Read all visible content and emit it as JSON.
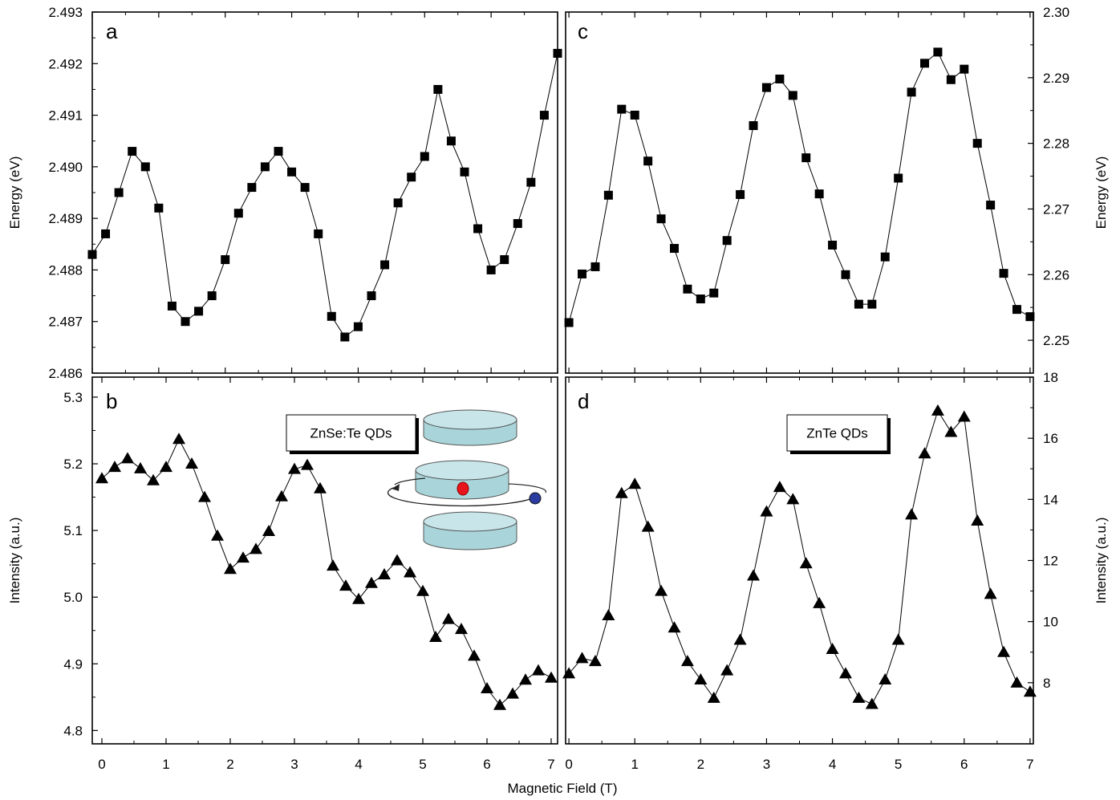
{
  "figure": {
    "xlabel": "Magnetic Field (T)"
  },
  "chart_data": [
    {
      "panel": "a",
      "type": "scatter",
      "marker": "square",
      "ylabel": "Energy (eV)",
      "ylabel_side": "left",
      "xlim": [
        0,
        7
      ],
      "ylim": [
        2.486,
        2.493
      ],
      "yticks": [
        "2.486",
        "2.487",
        "2.488",
        "2.489",
        "2.490",
        "2.491",
        "2.492",
        "2.493"
      ],
      "xticks": [],
      "x": [
        0,
        0.2,
        0.4,
        0.6,
        0.8,
        1.0,
        1.2,
        1.4,
        1.6,
        1.8,
        2.0,
        2.2,
        2.4,
        2.6,
        2.8,
        3.0,
        3.2,
        3.4,
        3.6,
        3.8,
        4.0,
        4.2,
        4.4,
        4.6,
        4.8,
        5.0,
        5.2,
        5.4,
        5.6,
        5.8,
        6.0,
        6.2,
        6.4,
        6.6,
        6.8,
        7.0
      ],
      "y": [
        2.4883,
        2.4887,
        2.4895,
        2.4903,
        2.49,
        2.4892,
        2.4873,
        2.487,
        2.4872,
        2.4875,
        2.4882,
        2.4891,
        2.4896,
        2.49,
        2.4903,
        2.4899,
        2.4896,
        2.4887,
        2.4871,
        2.4867,
        2.4869,
        2.4875,
        2.4881,
        2.4893,
        2.4898,
        2.4902,
        2.4915,
        2.4905,
        2.4899,
        2.4888,
        2.488,
        2.4882,
        2.4889,
        2.4897,
        2.491,
        2.4922
      ],
      "grid": false
    },
    {
      "panel": "b",
      "type": "scatter",
      "marker": "triangle",
      "ylabel": "Intensity (a.u.)",
      "ylabel_side": "left",
      "xlim": [
        -0.15,
        7.1
      ],
      "ylim": [
        4.78,
        5.33
      ],
      "yticks": [
        "4.8",
        "4.9",
        "5.0",
        "5.1",
        "5.2",
        "5.3"
      ],
      "xticks": [
        "0",
        "1",
        "2",
        "3",
        "4",
        "5",
        "6",
        "7"
      ],
      "inset_label": "ZnSe:Te QDs",
      "x": [
        0,
        0.2,
        0.4,
        0.6,
        0.8,
        1.0,
        1.2,
        1.4,
        1.6,
        1.8,
        2.0,
        2.2,
        2.4,
        2.6,
        2.8,
        3.0,
        3.2,
        3.4,
        3.6,
        3.8,
        4.0,
        4.2,
        4.4,
        4.6,
        4.8,
        5.0,
        5.2,
        5.4,
        5.6,
        5.8,
        6.0,
        6.2,
        6.4,
        6.6,
        6.8,
        7.0
      ],
      "y": [
        5.178,
        5.195,
        5.208,
        5.193,
        5.175,
        5.195,
        5.237,
        5.2,
        5.15,
        5.092,
        5.042,
        5.059,
        5.072,
        5.099,
        5.151,
        5.192,
        5.198,
        5.163,
        5.047,
        5.017,
        4.997,
        5.021,
        5.034,
        5.055,
        5.037,
        5.009,
        4.94,
        4.967,
        4.952,
        4.912,
        4.863,
        4.838,
        4.855,
        4.876,
        4.89,
        4.879
      ],
      "grid": false
    },
    {
      "panel": "c",
      "type": "scatter",
      "marker": "square",
      "ylabel": "Energy (eV)",
      "ylabel_side": "right",
      "xlim": [
        -0.05,
        7.05
      ],
      "ylim": [
        2.245,
        2.3
      ],
      "yticks": [
        "2.25",
        "2.26",
        "2.27",
        "2.28",
        "2.29",
        "2.30"
      ],
      "xticks": [],
      "x": [
        0,
        0.2,
        0.4,
        0.6,
        0.8,
        1.0,
        1.2,
        1.4,
        1.6,
        1.8,
        2.0,
        2.2,
        2.4,
        2.6,
        2.8,
        3.0,
        3.2,
        3.4,
        3.6,
        3.8,
        4.0,
        4.2,
        4.4,
        4.6,
        4.8,
        5.0,
        5.2,
        5.4,
        5.6,
        5.8,
        6.0,
        6.2,
        6.4,
        6.6,
        6.8,
        7.0
      ],
      "y": [
        2.2527,
        2.2601,
        2.2612,
        2.2721,
        2.2852,
        2.2843,
        2.2773,
        2.2685,
        2.264,
        2.2578,
        2.2563,
        2.2572,
        2.2652,
        2.2722,
        2.2827,
        2.2885,
        2.2898,
        2.2873,
        2.2778,
        2.2723,
        2.2645,
        2.26,
        2.2555,
        2.2555,
        2.2627,
        2.2747,
        2.2878,
        2.2922,
        2.2939,
        2.2897,
        2.2913,
        2.28,
        2.2706,
        2.2602,
        2.2547,
        2.2536
      ],
      "grid": false
    },
    {
      "panel": "d",
      "type": "scatter",
      "marker": "triangle",
      "ylabel": "Intensity (a.u.)",
      "ylabel_side": "right",
      "xlim": [
        -0.05,
        7.05
      ],
      "ylim": [
        6.0,
        18.0
      ],
      "yticks": [
        "8",
        "10",
        "12",
        "14",
        "16",
        "18"
      ],
      "xticks": [
        "0",
        "1",
        "2",
        "3",
        "4",
        "5",
        "6",
        "7"
      ],
      "inset_label": "ZnTe QDs",
      "x": [
        0,
        0.2,
        0.4,
        0.6,
        0.8,
        1.0,
        1.2,
        1.4,
        1.6,
        1.8,
        2.0,
        2.2,
        2.4,
        2.6,
        2.8,
        3.0,
        3.2,
        3.4,
        3.6,
        3.8,
        4.0,
        4.2,
        4.4,
        4.6,
        4.8,
        5.0,
        5.2,
        5.4,
        5.6,
        5.8,
        6.0,
        6.2,
        6.4,
        6.6,
        6.8,
        7.0
      ],
      "y": [
        8.3,
        8.8,
        8.7,
        10.2,
        14.2,
        14.5,
        13.1,
        11.0,
        9.8,
        8.7,
        8.1,
        7.5,
        8.4,
        9.4,
        11.5,
        13.6,
        14.4,
        14.0,
        11.9,
        10.6,
        9.1,
        8.3,
        7.5,
        7.3,
        8.1,
        9.4,
        13.5,
        15.5,
        16.9,
        16.2,
        16.7,
        13.3,
        10.9,
        9.0,
        8.0,
        7.7
      ],
      "grid": false
    }
  ]
}
